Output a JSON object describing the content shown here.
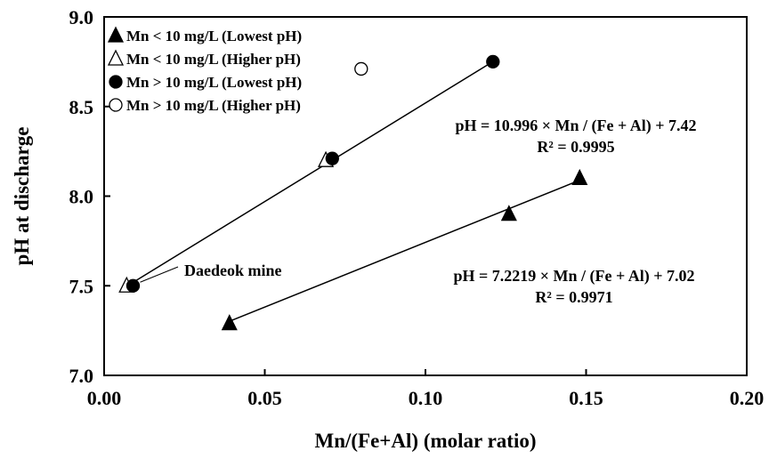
{
  "chart_data": {
    "type": "scatter",
    "title": "",
    "xlabel": "Mn/(Fe+Al) (molar ratio)",
    "ylabel": "pH at discharge",
    "xlim": [
      0.0,
      0.2
    ],
    "ylim": [
      7.0,
      9.0
    ],
    "x_ticks": [
      "0.00",
      "0.05",
      "0.10",
      "0.15",
      "0.20"
    ],
    "y_ticks": [
      "7.0",
      "7.5",
      "8.0",
      "8.5",
      "9.0"
    ],
    "grid": false,
    "legend_position": "top-left",
    "series": [
      {
        "name": "Mn < 10 mg/L (Lowest pH)",
        "marker": "triangle-filled",
        "points": [
          {
            "x": 0.039,
            "y": 7.29
          },
          {
            "x": 0.126,
            "y": 7.9
          },
          {
            "x": 0.148,
            "y": 8.1
          }
        ]
      },
      {
        "name": "Mn < 10 mg/L (Higher pH)",
        "marker": "triangle-open",
        "points": [
          {
            "x": 0.007,
            "y": 7.5
          },
          {
            "x": 0.069,
            "y": 8.2
          }
        ]
      },
      {
        "name": "Mn > 10 mg/L (Lowest pH)",
        "marker": "circle-filled",
        "points": [
          {
            "x": 0.009,
            "y": 7.5
          },
          {
            "x": 0.071,
            "y": 8.21
          },
          {
            "x": 0.121,
            "y": 8.75
          }
        ]
      },
      {
        "name": "Mn > 10 mg/L (Higher pH)",
        "marker": "circle-open",
        "points": [
          {
            "x": 0.08,
            "y": 8.71
          }
        ]
      }
    ],
    "trendlines": [
      {
        "slope": 10.996,
        "intercept": 7.42,
        "x_range": [
          0.007,
          0.121
        ],
        "equation": "pH = 10.996 × Mn / (Fe + Al) + 7.42",
        "r2": "R² = 0.9995"
      },
      {
        "slope": 7.2219,
        "intercept": 7.02,
        "x_range": [
          0.039,
          0.148
        ],
        "equation": "pH = 7.2219 × Mn / (Fe + Al) + 7.02",
        "r2": "R² = 0.9971"
      }
    ],
    "annotations": [
      {
        "text": "Daedeok mine",
        "x": 0.009,
        "y": 7.5
      }
    ]
  }
}
